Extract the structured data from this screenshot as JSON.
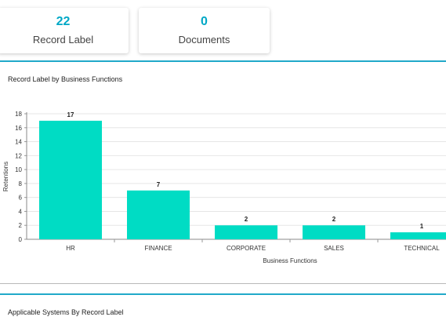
{
  "colors": {
    "accent": "#00a8c6",
    "bar": "#00dcc4",
    "panel_rule": "#21a9c9"
  },
  "stats": [
    {
      "value": "22",
      "label": "Record Label"
    },
    {
      "value": "0",
      "label": "Documents"
    }
  ],
  "panels": {
    "record_label_title": "Record Label by Business Functions",
    "systems_title": "Applicable Systems By Record Label"
  },
  "chart_data": {
    "type": "bar",
    "title": "Record Label by Business Functions",
    "categories": [
      "HR",
      "FINANCE",
      "CORPORATE",
      "SALES",
      "TECHNICAL"
    ],
    "values": [
      17,
      7,
      2,
      2,
      1
    ],
    "data_labels": [
      "17",
      "7",
      "2",
      "2",
      "1"
    ],
    "xlabel": "Business Functions",
    "ylabel": "Retentions",
    "ylim": [
      0,
      18
    ],
    "yticks": [
      0,
      2,
      4,
      6,
      8,
      10,
      12,
      14,
      16,
      18
    ],
    "grid": true
  }
}
